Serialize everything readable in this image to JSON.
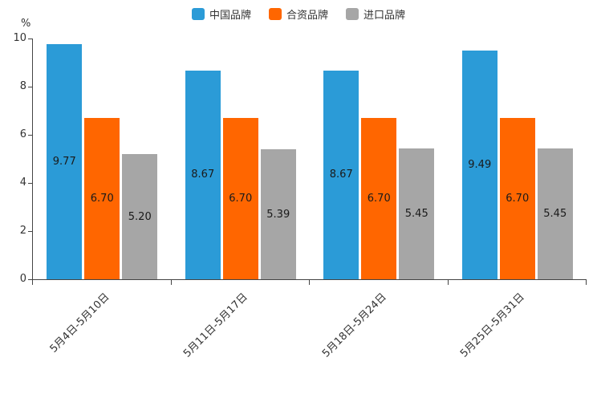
{
  "unit_label": "%",
  "chart_data": {
    "type": "bar",
    "title": "",
    "xlabel": "",
    "ylabel": "%",
    "ylim": [
      0,
      10
    ],
    "yticks": [
      0,
      2,
      4,
      6,
      8,
      10
    ],
    "grid": false,
    "legend_position": "top",
    "categories": [
      "5月4日-5月10日",
      "5月11日-5月17日",
      "5月18日-5月24日",
      "5月25日-5月31日"
    ],
    "series": [
      {
        "id": "china-brand",
        "name": "中国品牌",
        "color": "#2B9BD7",
        "values": [
          9.77,
          8.67,
          8.67,
          9.49
        ]
      },
      {
        "id": "joint-venture-brand",
        "name": "合资品牌",
        "color": "#FF6600",
        "values": [
          6.7,
          6.7,
          6.7,
          6.7
        ]
      },
      {
        "id": "import-brand",
        "name": "进口品牌",
        "color": "#A6A6A6",
        "values": [
          5.2,
          5.39,
          5.45,
          5.45
        ]
      }
    ],
    "value_label_decimals": 2
  }
}
